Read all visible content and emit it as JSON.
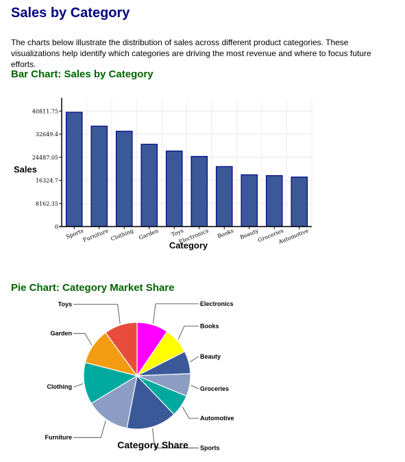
{
  "page": {
    "title": "Sales by Category",
    "intro": "The charts below illustrate the distribution of sales across different product categories. These visualizations help identify which categories are driving the most revenue and where to focus future efforts.",
    "bar_section_title": "Bar Chart: Sales by Category",
    "pie_section_title": "Pie Chart: Category Market Share"
  },
  "chart_data": [
    {
      "type": "bar",
      "xlabel": "Category",
      "ylabel": "Sales",
      "categories": [
        "Sports",
        "Furniture",
        "Clothing",
        "Garden",
        "Toys",
        "Electronics",
        "Books",
        "Beauty",
        "Groceries",
        "Automotive"
      ],
      "values": [
        40400,
        35500,
        33700,
        29100,
        26700,
        24800,
        21200,
        18300,
        18000,
        17500
      ],
      "yticks": [
        "0",
        "8162.35",
        "16324.7",
        "24487.05",
        "32649.4",
        "40811.75"
      ],
      "ylim": [
        0,
        45000
      ],
      "grid": true,
      "colors": {
        "bar_fill": "#3b5998",
        "bar_stroke": "#00008b"
      }
    },
    {
      "type": "pie",
      "title": "Category Share",
      "slices": [
        {
          "label": "Electronics",
          "value": 9.0,
          "color": "#ff00ff"
        },
        {
          "label": "Books",
          "value": 7.6,
          "color": "#ffff00"
        },
        {
          "label": "Beauty",
          "value": 6.5,
          "color": "#3b5998"
        },
        {
          "label": "Groceries",
          "value": 6.5,
          "color": "#8b9dc3"
        },
        {
          "label": "Automotive",
          "value": 6.3,
          "color": "#00a99d"
        },
        {
          "label": "Sports",
          "value": 14.4,
          "color": "#3b5998"
        },
        {
          "label": "Furniture",
          "value": 12.6,
          "color": "#8b9dc3"
        },
        {
          "label": "Clothing",
          "value": 12.0,
          "color": "#00a99d"
        },
        {
          "label": "Garden",
          "value": 10.4,
          "color": "#f39c12"
        },
        {
          "label": "Toys",
          "value": 9.5,
          "color": "#e74c3c"
        }
      ]
    }
  ]
}
